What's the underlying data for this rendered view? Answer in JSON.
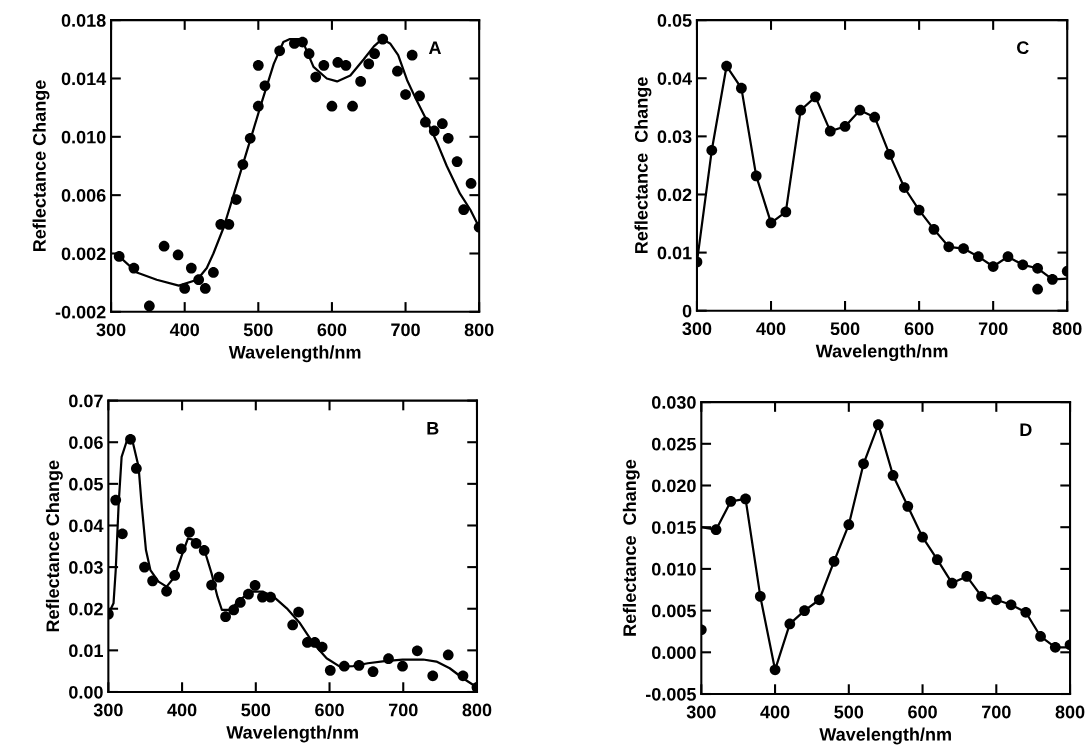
{
  "chart_data": [
    {
      "type": "scatter",
      "xlabel": "Wavelength/nm",
      "ylabel": "Reflectance Change",
      "annotations": [
        "A"
      ],
      "xlim": [
        300,
        800
      ],
      "ylim": [
        -0.002,
        0.018
      ],
      "xticks": [
        300,
        400,
        500,
        600,
        700,
        800
      ],
      "yticks": [
        {
          "value": -0.002,
          "label": "-0.002"
        },
        {
          "value": 0.002,
          "label": "0.002"
        },
        {
          "value": 0.006,
          "label": "0.006"
        },
        {
          "value": 0.01,
          "label": "0.010"
        },
        {
          "value": 0.014,
          "label": "0.014"
        },
        {
          "value": 0.018,
          "label": "0.018"
        }
      ],
      "marker": "circle",
      "series": [
        {
          "color": "#000000",
          "x": [
            311,
            331,
            352,
            372,
            391,
            409,
            400,
            419,
            428,
            439,
            449,
            460,
            470,
            479,
            489,
            500,
            500,
            509,
            529,
            549,
            560,
            569,
            578,
            589,
            600,
            608,
            619,
            628,
            639,
            650,
            658,
            669,
            689,
            700,
            709,
            719,
            727,
            739,
            750,
            758,
            770,
            779,
            789,
            800
          ],
          "values": [
            0.0018,
            0.001,
            -0.0016,
            0.0025,
            0.0019,
            0.001,
            -0.0004,
            0.0002,
            -0.0004,
            0.0007,
            0.004,
            0.004,
            0.0057,
            0.0081,
            0.0099,
            0.0121,
            0.0149,
            0.0135,
            0.0159,
            0.0164,
            0.0165,
            0.0157,
            0.0141,
            0.0149,
            0.0121,
            0.0151,
            0.0149,
            0.0121,
            0.0138,
            0.015,
            0.0157,
            0.0167,
            0.0145,
            0.0129,
            0.0156,
            0.0128,
            0.011,
            0.0104,
            0.0109,
            0.0099,
            0.0083,
            0.005,
            0.0068,
            0.0038
          ]
        },
        {
          "type": "line",
          "color": "#000000",
          "marker": "none",
          "x": [
            311,
            335,
            362,
            392,
            417,
            430,
            439,
            453,
            467,
            485,
            503,
            521,
            534,
            543,
            559,
            575,
            593,
            607,
            625,
            643,
            657,
            668,
            679,
            690,
            702,
            715,
            729,
            742,
            756,
            774,
            788,
            800
          ],
          "values": [
            0.0018,
            0.0007,
            0.0002,
            -0.0002,
            0.0002,
            0.001,
            0.002,
            0.0038,
            0.0061,
            0.0091,
            0.0121,
            0.015,
            0.0165,
            0.0167,
            0.0167,
            0.0148,
            0.014,
            0.0138,
            0.0142,
            0.0153,
            0.0162,
            0.0167,
            0.0164,
            0.0156,
            0.0139,
            0.0125,
            0.0111,
            0.0097,
            0.008,
            0.0061,
            0.005,
            0.0038
          ]
        }
      ]
    },
    {
      "type": "scatter",
      "xlabel": "Wavelength/nm",
      "ylabel": "Reflectance  Change",
      "annotations": [
        "C"
      ],
      "xlim": [
        300,
        800
      ],
      "ylim": [
        0,
        0.05
      ],
      "xticks": [
        300,
        400,
        500,
        600,
        700,
        800
      ],
      "yticks": [
        0,
        0.01,
        0.02,
        0.03,
        0.04,
        0.05
      ],
      "marker": "circle",
      "series": [
        {
          "color": "#000000",
          "x": [
            300,
            320,
            340,
            360,
            380,
            400,
            420,
            440,
            460,
            480,
            500,
            520,
            540,
            560,
            580,
            600,
            620,
            640,
            660,
            680,
            700,
            720,
            740,
            760,
            760,
            780,
            800
          ],
          "values": [
            0.0084,
            0.0276,
            0.0421,
            0.0383,
            0.0232,
            0.0151,
            0.017,
            0.0345,
            0.0368,
            0.0309,
            0.0317,
            0.0345,
            0.0333,
            0.0269,
            0.0212,
            0.0173,
            0.014,
            0.011,
            0.0107,
            0.0093,
            0.0076,
            0.0093,
            0.0079,
            0.0073,
            0.0037,
            0.0054,
            0.0068
          ]
        },
        {
          "type": "line",
          "color": "#000000",
          "marker": "none",
          "x": [
            300,
            320,
            340,
            360,
            380,
            400,
            420,
            440,
            460,
            480,
            500,
            520,
            540,
            560,
            580,
            600,
            620,
            640,
            660,
            680,
            700,
            720,
            740,
            760,
            780,
            800
          ],
          "values": [
            0.0084,
            0.0276,
            0.0421,
            0.0383,
            0.0232,
            0.0151,
            0.017,
            0.0345,
            0.0368,
            0.0309,
            0.0317,
            0.0345,
            0.0333,
            0.0269,
            0.0212,
            0.0173,
            0.014,
            0.011,
            0.0107,
            0.0093,
            0.0076,
            0.0093,
            0.0079,
            0.0073,
            0.0054,
            0.0055
          ]
        }
      ]
    },
    {
      "type": "scatter",
      "xlabel": "Wavelength/nm",
      "ylabel": "Reflectance Change",
      "annotations": [
        "B"
      ],
      "xlim": [
        300,
        800
      ],
      "ylim": [
        0,
        0.07
      ],
      "xticks": [
        300,
        400,
        500,
        600,
        700,
        800
      ],
      "yticks": [
        {
          "value": 0,
          "label": "0.00"
        },
        {
          "value": 0.01,
          "label": "0.01"
        },
        {
          "value": 0.02,
          "label": "0.02"
        },
        {
          "value": 0.03,
          "label": "0.03"
        },
        {
          "value": 0.04,
          "label": "0.04"
        },
        {
          "value": 0.05,
          "label": "0.05"
        },
        {
          "value": 0.06,
          "label": "0.06"
        },
        {
          "value": 0.07,
          "label": "0.07"
        }
      ],
      "marker": "circle",
      "series": [
        {
          "color": "#000000",
          "x": [
            300,
            310,
            319,
            330,
            338,
            349,
            360,
            379,
            390,
            399,
            410,
            419,
            430,
            440,
            450,
            459,
            470,
            479,
            490,
            499,
            509,
            520,
            550,
            558,
            570,
            580,
            590,
            601,
            620,
            640,
            659,
            680,
            699,
            719,
            740,
            761,
            781,
            800
          ],
          "values": [
            0.0187,
            0.0461,
            0.038,
            0.0607,
            0.0537,
            0.03,
            0.0267,
            0.0242,
            0.028,
            0.0344,
            0.0384,
            0.0357,
            0.034,
            0.0257,
            0.0276,
            0.0181,
            0.0197,
            0.0215,
            0.0235,
            0.0256,
            0.0228,
            0.0228,
            0.0161,
            0.0192,
            0.0119,
            0.0119,
            0.0108,
            0.0052,
            0.0062,
            0.0064,
            0.0049,
            0.008,
            0.0062,
            0.0099,
            0.0039,
            0.0089,
            0.0039,
            0.0011
          ]
        },
        {
          "type": "line",
          "color": "#000000",
          "marker": "none",
          "x": [
            300,
            307,
            310,
            314,
            318,
            325,
            333,
            341,
            345,
            351,
            357,
            368,
            379,
            390,
            399,
            408,
            417,
            431,
            440,
            448,
            454,
            465,
            478,
            494,
            510,
            524,
            542,
            560,
            578,
            596,
            614,
            632,
            652,
            675,
            699,
            727,
            745,
            763,
            781,
            800
          ],
          "values": [
            0.0187,
            0.0213,
            0.0293,
            0.0453,
            0.0565,
            0.0603,
            0.0601,
            0.0541,
            0.0453,
            0.0341,
            0.0293,
            0.0265,
            0.0253,
            0.0277,
            0.0325,
            0.0369,
            0.0365,
            0.0337,
            0.0285,
            0.0229,
            0.0197,
            0.0197,
            0.0221,
            0.0241,
            0.0241,
            0.0229,
            0.0201,
            0.0165,
            0.0117,
            0.0081,
            0.0061,
            0.0062,
            0.0069,
            0.0074,
            0.0078,
            0.0078,
            0.0073,
            0.0057,
            0.0033,
            0.0011
          ]
        }
      ]
    },
    {
      "type": "scatter",
      "xlabel": "Wavelength/nm",
      "ylabel": "Reflectance  Change",
      "annotations": [
        "D"
      ],
      "xlim": [
        300,
        800
      ],
      "ylim": [
        -0.005,
        0.03
      ],
      "xticks": [
        300,
        400,
        500,
        600,
        700,
        800
      ],
      "yticks": [
        {
          "value": -0.005,
          "label": "-0.005"
        },
        {
          "value": 0,
          "label": "0.000"
        },
        {
          "value": 0.005,
          "label": "0.005"
        },
        {
          "value": 0.01,
          "label": "0.010"
        },
        {
          "value": 0.015,
          "label": "0.015"
        },
        {
          "value": 0.02,
          "label": "0.020"
        },
        {
          "value": 0.025,
          "label": "0.025"
        },
        {
          "value": 0.03,
          "label": "0.030"
        }
      ],
      "marker": "circle",
      "series": [
        {
          "color": "#000000",
          "x": [
            300,
            320,
            340,
            360,
            380,
            400,
            420,
            440,
            460,
            480,
            500,
            520,
            540,
            560,
            580,
            600,
            620,
            640,
            660,
            680,
            700,
            720,
            740,
            760,
            780,
            800
          ],
          "values": [
            0.0027,
            0.0147,
            0.0181,
            0.0184,
            0.0067,
            -0.0021,
            0.0034,
            0.005,
            0.0063,
            0.0109,
            0.0153,
            0.0226,
            0.0273,
            0.0212,
            0.0175,
            0.0138,
            0.0111,
            0.0083,
            0.0091,
            0.0067,
            0.0063,
            0.0057,
            0.0048,
            0.0019,
            0.0006,
            0.0009
          ]
        },
        {
          "type": "line",
          "color": "#000000",
          "marker": "none",
          "x": [
            300,
            320,
            340,
            360,
            380,
            400,
            420,
            440,
            460,
            480,
            500,
            520,
            540,
            560,
            580,
            600,
            620,
            640,
            660,
            680,
            700,
            720,
            740,
            760,
            780,
            800
          ],
          "values": [
            0.015,
            0.0147,
            0.0181,
            0.0184,
            0.0067,
            -0.0021,
            0.0034,
            0.005,
            0.0063,
            0.0109,
            0.0153,
            0.0226,
            0.0273,
            0.0212,
            0.0175,
            0.0138,
            0.0111,
            0.0083,
            0.0091,
            0.0067,
            0.0063,
            0.0057,
            0.0048,
            0.0019,
            0.0006,
            0.0006
          ]
        }
      ]
    }
  ]
}
